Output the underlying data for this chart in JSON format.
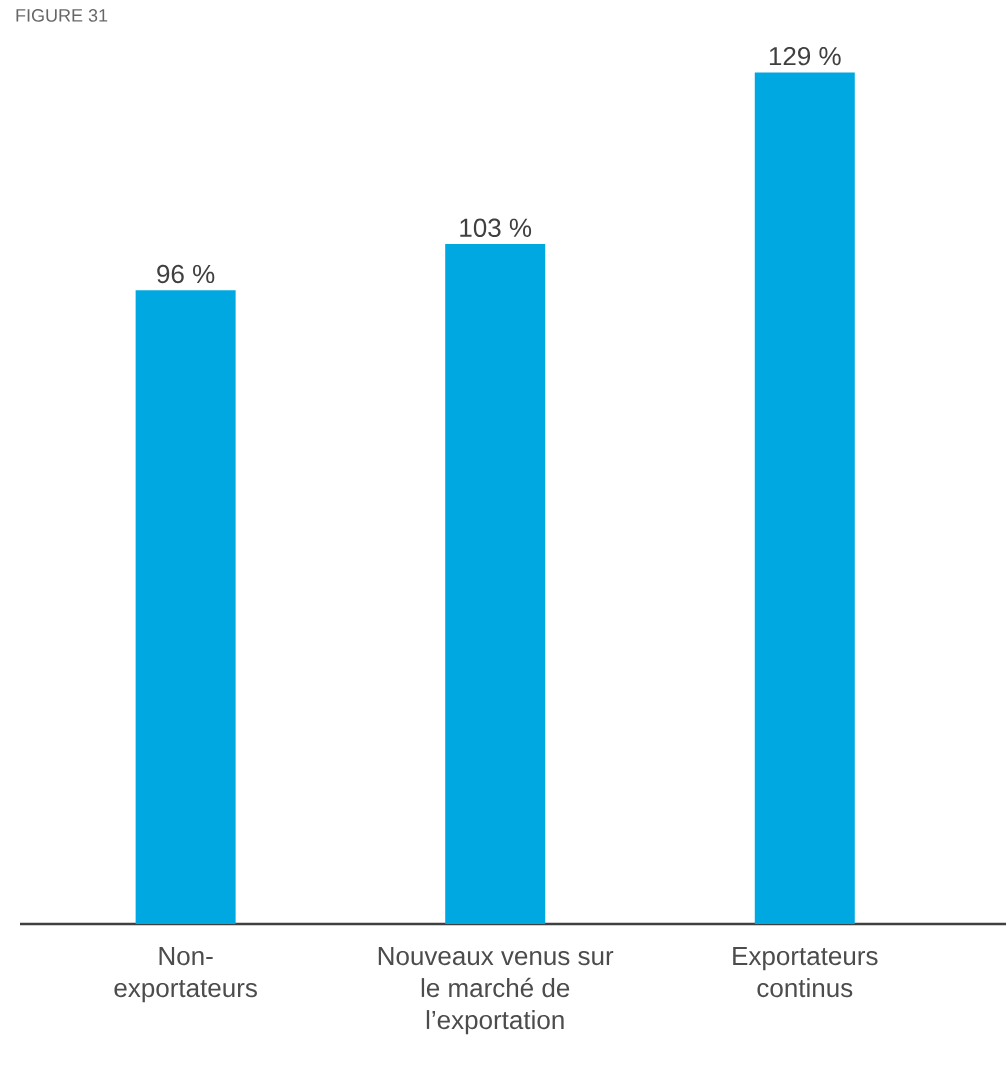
{
  "chart_data": {
    "type": "bar",
    "title": "FIGURE 31",
    "categories": [
      "Non-exportateurs",
      "Nouveaux venus sur le marché de l’exportation",
      "Exportateurs continus"
    ],
    "values": [
      96,
      103,
      129
    ],
    "value_labels": [
      "96 %",
      "103 %",
      "129 %"
    ],
    "color": "#00a8e1"
  }
}
